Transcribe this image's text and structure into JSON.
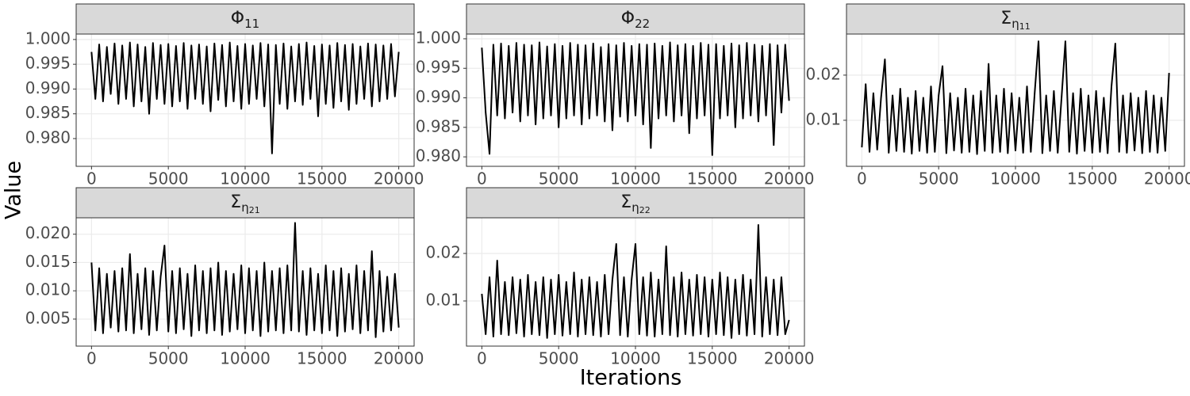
{
  "axis_labels": {
    "x": "Iterations",
    "y": "Value"
  },
  "chart_data": [
    {
      "type": "line",
      "title": "Φ",
      "title_subscript": "11",
      "color": "#000000",
      "grid": true,
      "xlim": [
        -1000,
        21000
      ],
      "xticks": [
        0,
        5000,
        10000,
        15000,
        20000
      ],
      "ylim": [
        0.9744,
        1.0011
      ],
      "yticks": [
        {
          "value": 0.98,
          "label": "0.980"
        },
        0.985,
        {
          "value": 0.99,
          "label": "0.990"
        },
        0.995,
        {
          "value": 1,
          "label": "1.000"
        }
      ],
      "x": [
        0,
        250,
        500,
        750,
        1000,
        1250,
        1500,
        1750,
        2000,
        2250,
        2500,
        2750,
        3000,
        3250,
        3500,
        3750,
        4000,
        4250,
        4500,
        4750,
        5000,
        5250,
        5500,
        5750,
        6000,
        6250,
        6500,
        6750,
        7000,
        7250,
        7500,
        7750,
        8000,
        8250,
        8500,
        8750,
        9000,
        9250,
        9500,
        9750,
        10000,
        10250,
        10500,
        10750,
        11000,
        11250,
        11500,
        11750,
        12000,
        12250,
        12500,
        12750,
        13000,
        13250,
        13500,
        13750,
        14000,
        14250,
        14500,
        14750,
        15000,
        15250,
        15500,
        15750,
        16000,
        16250,
        16500,
        16750,
        17000,
        17250,
        17500,
        17750,
        18000,
        18250,
        18500,
        18750,
        19000,
        19250,
        19500,
        19750,
        20000
      ],
      "values": [
        0.9975,
        0.988,
        0.999,
        0.9875,
        0.9985,
        0.989,
        0.9992,
        0.987,
        0.9988,
        0.988,
        0.9994,
        0.9865,
        0.999,
        0.9875,
        0.9985,
        0.985,
        0.9993,
        0.988,
        0.9989,
        0.987,
        0.9991,
        0.9865,
        0.9987,
        0.9875,
        0.9993,
        0.986,
        0.9988,
        0.988,
        0.999,
        0.987,
        0.9986,
        0.9855,
        0.9992,
        0.9878,
        0.9989,
        0.9865,
        0.9994,
        0.9875,
        0.9987,
        0.986,
        0.9991,
        0.987,
        0.9988,
        0.988,
        0.9993,
        0.9865,
        0.999,
        0.977,
        0.9989,
        0.987,
        0.9992,
        0.986,
        0.9986,
        0.9875,
        0.9991,
        0.9868,
        0.9994,
        0.988,
        0.9987,
        0.9845,
        0.999,
        0.987,
        0.9988,
        0.9862,
        0.9993,
        0.9875,
        0.9989,
        0.9858,
        0.9991,
        0.987,
        0.9986,
        0.988,
        0.9992,
        0.9865,
        0.999,
        0.9875,
        0.9988,
        0.988,
        0.9991,
        0.9885,
        0.9975
      ]
    },
    {
      "type": "line",
      "title": "Φ",
      "title_subscript": "22",
      "color": "#000000",
      "grid": true,
      "xlim": [
        -1000,
        21000
      ],
      "xticks": [
        0,
        5000,
        10000,
        15000,
        20000
      ],
      "ylim": [
        0.9784,
        1.0008
      ],
      "yticks": [
        {
          "value": 0.98,
          "label": "0.980"
        },
        0.985,
        {
          "value": 0.99,
          "label": "0.990"
        },
        0.995,
        {
          "value": 1,
          "label": "1.000"
        }
      ],
      "x": [
        0,
        250,
        500,
        750,
        1000,
        1250,
        1500,
        1750,
        2000,
        2250,
        2500,
        2750,
        3000,
        3250,
        3500,
        3750,
        4000,
        4250,
        4500,
        4750,
        5000,
        5250,
        5500,
        5750,
        6000,
        6250,
        6500,
        6750,
        7000,
        7250,
        7500,
        7750,
        8000,
        8250,
        8500,
        8750,
        9000,
        9250,
        9500,
        9750,
        10000,
        10250,
        10500,
        10750,
        11000,
        11250,
        11500,
        11750,
        12000,
        12250,
        12500,
        12750,
        13000,
        13250,
        13500,
        13750,
        14000,
        14250,
        14500,
        14750,
        15000,
        15250,
        15500,
        15750,
        16000,
        16250,
        16500,
        16750,
        17000,
        17250,
        17500,
        17750,
        18000,
        18250,
        18500,
        18750,
        19000,
        19250,
        19500,
        19750,
        20000
      ],
      "values": [
        0.9985,
        0.9875,
        0.9805,
        0.999,
        0.987,
        0.9992,
        0.9865,
        0.9988,
        0.9875,
        0.9993,
        0.986,
        0.999,
        0.987,
        0.9989,
        0.9855,
        0.9994,
        0.9865,
        0.9987,
        0.987,
        0.9991,
        0.985,
        0.9988,
        0.9865,
        0.9993,
        0.987,
        0.999,
        0.9855,
        0.9989,
        0.9865,
        0.9992,
        0.987,
        0.9986,
        0.986,
        0.9991,
        0.9845,
        0.9989,
        0.9868,
        0.9993,
        0.986,
        0.9988,
        0.987,
        0.9991,
        0.9855,
        0.999,
        0.9815,
        0.9992,
        0.9865,
        0.9988,
        0.987,
        0.9994,
        0.986,
        0.9989,
        0.987,
        0.9991,
        0.984,
        0.9988,
        0.9865,
        0.9993,
        0.987,
        0.999,
        0.9803,
        0.9991,
        0.9865,
        0.9988,
        0.987,
        0.9992,
        0.985,
        0.9989,
        0.9865,
        0.9993,
        0.987,
        0.999,
        0.986,
        0.9988,
        0.987,
        0.9991,
        0.982,
        0.9989,
        0.9875,
        0.999,
        0.9895
      ]
    },
    {
      "type": "line",
      "title": "Σ",
      "title_subscript": "η",
      "title_subscript2": "11",
      "color": "#000000",
      "grid": true,
      "xlim": [
        -1000,
        21000
      ],
      "xticks": [
        0,
        5000,
        10000,
        15000,
        20000
      ],
      "ylim": [
        -0.0002,
        0.0291
      ],
      "yticks": [
        0.01,
        0.02
      ],
      "x": [
        0,
        250,
        500,
        750,
        1000,
        1250,
        1500,
        1750,
        2000,
        2250,
        2500,
        2750,
        3000,
        3250,
        3500,
        3750,
        4000,
        4250,
        4500,
        4750,
        5000,
        5250,
        5500,
        5750,
        6000,
        6250,
        6500,
        6750,
        7000,
        7250,
        7500,
        7750,
        8000,
        8250,
        8500,
        8750,
        9000,
        9250,
        9500,
        9750,
        10000,
        10250,
        10500,
        10750,
        11000,
        11250,
        11500,
        11750,
        12000,
        12250,
        12500,
        12750,
        13000,
        13250,
        13500,
        13750,
        14000,
        14250,
        14500,
        14750,
        15000,
        15250,
        15500,
        15750,
        16000,
        16250,
        16500,
        16750,
        17000,
        17250,
        17500,
        17750,
        18000,
        18250,
        18500,
        18750,
        19000,
        19250,
        19500,
        19750,
        20000
      ],
      "values": [
        0.004,
        0.018,
        0.003,
        0.016,
        0.0035,
        0.015,
        0.0235,
        0.0028,
        0.0155,
        0.0032,
        0.017,
        0.003,
        0.015,
        0.0026,
        0.0165,
        0.0032,
        0.015,
        0.0028,
        0.0175,
        0.003,
        0.0155,
        0.022,
        0.0027,
        0.016,
        0.0033,
        0.015,
        0.0028,
        0.017,
        0.003,
        0.0155,
        0.0025,
        0.0165,
        0.0032,
        0.0225,
        0.0028,
        0.0155,
        0.003,
        0.017,
        0.0027,
        0.016,
        0.0033,
        0.015,
        0.0028,
        0.0175,
        0.003,
        0.016,
        0.0275,
        0.0027,
        0.0155,
        0.0032,
        0.0165,
        0.0028,
        0.015,
        0.0275,
        0.003,
        0.016,
        0.0026,
        0.017,
        0.0032,
        0.0155,
        0.0028,
        0.0165,
        0.003,
        0.015,
        0.0027,
        0.0175,
        0.027,
        0.003,
        0.0155,
        0.0028,
        0.016,
        0.0033,
        0.015,
        0.0027,
        0.0165,
        0.003,
        0.0155,
        0.0028,
        0.015,
        0.0032,
        0.0205
      ]
    },
    {
      "type": "line",
      "title": "Σ",
      "title_subscript": "η",
      "title_subscript2": "21",
      "color": "#000000",
      "grid": true,
      "xlim": [
        -1000,
        21000
      ],
      "xticks": [
        0,
        5000,
        10000,
        15000,
        20000
      ],
      "ylim": [
        0.00023,
        0.0229
      ],
      "yticks": [
        0.005,
        {
          "value": 0.01,
          "label": "0.010"
        },
        0.015,
        {
          "value": 0.02,
          "label": "0.020"
        }
      ],
      "x": [
        0,
        250,
        500,
        750,
        1000,
        1250,
        1500,
        1750,
        2000,
        2250,
        2500,
        2750,
        3000,
        3250,
        3500,
        3750,
        4000,
        4250,
        4500,
        4750,
        5000,
        5250,
        5500,
        5750,
        6000,
        6250,
        6500,
        6750,
        7000,
        7250,
        7500,
        7750,
        8000,
        8250,
        8500,
        8750,
        9000,
        9250,
        9500,
        9750,
        10000,
        10250,
        10500,
        10750,
        11000,
        11250,
        11500,
        11750,
        12000,
        12250,
        12500,
        12750,
        13000,
        13250,
        13500,
        13750,
        14000,
        14250,
        14500,
        14750,
        15000,
        15250,
        15500,
        15750,
        16000,
        16250,
        16500,
        16750,
        17000,
        17250,
        17500,
        17750,
        18000,
        18250,
        18500,
        18750,
        19000,
        19250,
        19500,
        19750,
        20000
      ],
      "values": [
        0.015,
        0.003,
        0.014,
        0.0025,
        0.013,
        0.0035,
        0.0135,
        0.0028,
        0.014,
        0.003,
        0.0165,
        0.0025,
        0.013,
        0.0032,
        0.014,
        0.0022,
        0.0135,
        0.003,
        0.0125,
        0.018,
        0.0028,
        0.0135,
        0.0025,
        0.014,
        0.0032,
        0.013,
        0.002,
        0.0145,
        0.003,
        0.0135,
        0.0025,
        0.014,
        0.003,
        0.015,
        0.0022,
        0.0135,
        0.0028,
        0.013,
        0.0032,
        0.0145,
        0.0025,
        0.014,
        0.003,
        0.0135,
        0.002,
        0.015,
        0.0028,
        0.0135,
        0.003,
        0.014,
        0.0025,
        0.0145,
        0.003,
        0.022,
        0.0028,
        0.0135,
        0.0022,
        0.014,
        0.003,
        0.013,
        0.0025,
        0.0145,
        0.003,
        0.0135,
        0.002,
        0.014,
        0.0028,
        0.013,
        0.0032,
        0.0145,
        0.0025,
        0.0135,
        0.003,
        0.017,
        0.0018,
        0.0135,
        0.0028,
        0.0125,
        0.003,
        0.013,
        0.0035
      ]
    },
    {
      "type": "line",
      "title": "Σ",
      "title_subscript": "η",
      "title_subscript2": "22",
      "color": "#000000",
      "grid": true,
      "xlim": [
        -1000,
        21000
      ],
      "xticks": [
        0,
        5000,
        10000,
        15000,
        20000
      ],
      "ylim": [
        0.0005,
        0.0275
      ],
      "yticks": [
        0.01,
        0.02
      ],
      "x": [
        0,
        250,
        500,
        750,
        1000,
        1250,
        1500,
        1750,
        2000,
        2250,
        2500,
        2750,
        3000,
        3250,
        3500,
        3750,
        4000,
        4250,
        4500,
        4750,
        5000,
        5250,
        5500,
        5750,
        6000,
        6250,
        6500,
        6750,
        7000,
        7250,
        7500,
        7750,
        8000,
        8250,
        8500,
        8750,
        9000,
        9250,
        9500,
        9750,
        10000,
        10250,
        10500,
        10750,
        11000,
        11250,
        11500,
        11750,
        12000,
        12250,
        12500,
        12750,
        13000,
        13250,
        13500,
        13750,
        14000,
        14250,
        14500,
        14750,
        15000,
        15250,
        15500,
        15750,
        16000,
        16250,
        16500,
        16750,
        17000,
        17250,
        17500,
        17750,
        18000,
        18250,
        18500,
        18750,
        19000,
        19250,
        19500,
        19750,
        20000
      ],
      "values": [
        0.0115,
        0.003,
        0.015,
        0.0025,
        0.0185,
        0.003,
        0.014,
        0.0028,
        0.015,
        0.0032,
        0.0145,
        0.0025,
        0.0155,
        0.003,
        0.014,
        0.0028,
        0.015,
        0.0022,
        0.0145,
        0.003,
        0.0155,
        0.0027,
        0.014,
        0.003,
        0.016,
        0.0025,
        0.0145,
        0.003,
        0.015,
        0.0028,
        0.014,
        0.0025,
        0.0155,
        0.003,
        0.0145,
        0.022,
        0.0028,
        0.015,
        0.0025,
        0.0145,
        0.022,
        0.003,
        0.015,
        0.0027,
        0.016,
        0.0025,
        0.0145,
        0.003,
        0.0215,
        0.0028,
        0.015,
        0.0025,
        0.016,
        0.003,
        0.0145,
        0.0027,
        0.0155,
        0.003,
        0.015,
        0.0025,
        0.0145,
        0.003,
        0.016,
        0.0028,
        0.015,
        0.0022,
        0.0145,
        0.003,
        0.0155,
        0.0027,
        0.0145,
        0.003,
        0.026,
        0.0025,
        0.015,
        0.003,
        0.0145,
        0.0028,
        0.015,
        0.003,
        0.006
      ]
    }
  ]
}
